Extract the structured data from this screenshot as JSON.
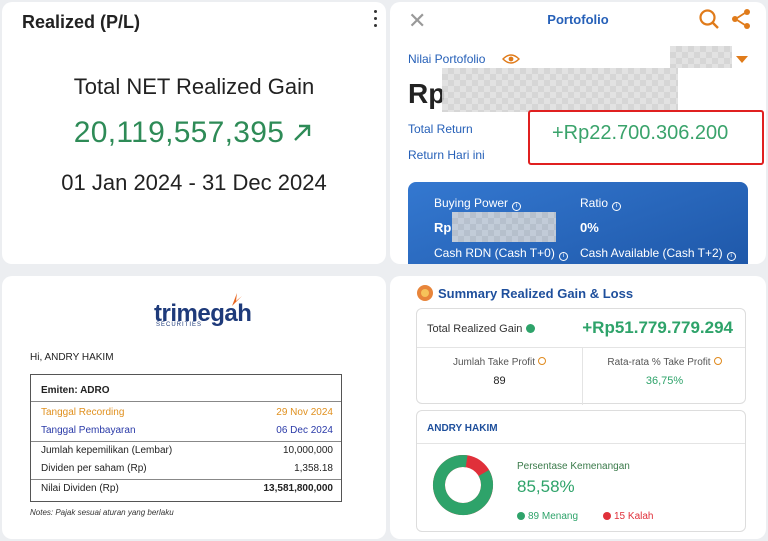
{
  "realized_panel": {
    "title": "Realized (P/L)",
    "label": "Total NET Realized Gain",
    "value": "20,119,557,395",
    "date_range": "01 Jan 2024 - 31 Dec 2024"
  },
  "portfolio_panel": {
    "title": "Portofolio",
    "nilai_label": "Nilai Portofolio",
    "currency": "Rp",
    "total_return_label": "Total Return",
    "return_today_label": "Return Hari ini",
    "total_return_value": "+Rp22.700.306.200",
    "card": {
      "buying_power_label": "Buying Power",
      "buying_power_prefix": "Rp",
      "ratio_label": "Ratio",
      "ratio_value": "0%",
      "cash_rdn_label": "Cash RDN (Cash T+0)",
      "cash_available_label": "Cash Available (Cash T+2)"
    },
    "colors": {
      "accent": "#e07b1a",
      "blue": "#2660b8",
      "positive": "#3aa36b",
      "highlight": "#e02020"
    }
  },
  "dividend_panel": {
    "logo_text": "trimegah",
    "logo_sub": "SECURITIES",
    "greeting": "Hi, ANDRY HAKIM",
    "emiten": "Emiten: ADRO",
    "rows": [
      {
        "label": "Tanggal Recording",
        "value": "29 Nov 2024"
      },
      {
        "label": "Tanggal Pembayaran",
        "value": "06 Dec 2024"
      },
      {
        "label": "Jumlah kepemilikan (Lembar)",
        "value": "10,000,000"
      },
      {
        "label": "Dividen per saham (Rp)",
        "value": "1,358.18"
      },
      {
        "label": "Nilai Dividen (Rp)",
        "value": "13,581,800,000"
      }
    ],
    "notes": "Notes: Pajak sesuai aturan yang berlaku"
  },
  "summary_panel": {
    "title": "Summary Realized Gain & Loss",
    "total_label": "Total Realized Gain",
    "total_value": "+Rp51.779.779.294",
    "take_profit_label": "Jumlah Take Profit",
    "take_profit_value": "89",
    "avg_take_profit_label": "Rata-rata % Take Profit",
    "avg_take_profit_value": "36,75%",
    "account_name": "ANDRY HAKIM",
    "win_label": "Persentase Kemenangan",
    "win_value": "85,58%",
    "win_fraction": 0.8558,
    "wins": "89",
    "wins_label": "Menang",
    "losses": "15",
    "losses_label": "Kalah",
    "colors": {
      "win": "#2ea36a",
      "loss": "#e0303a"
    }
  }
}
